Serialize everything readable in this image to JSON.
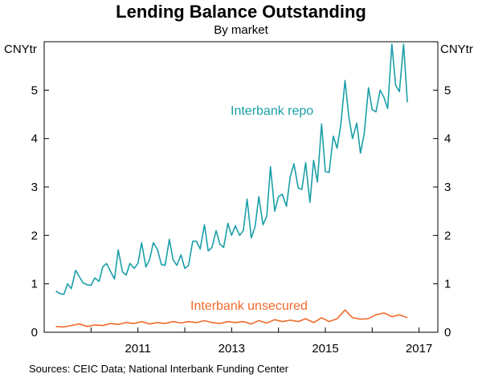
{
  "title": "Lending Balance Outstanding",
  "subtitle": "By market",
  "source": "Sources: CEIC Data; National Interbank Funding Center",
  "colors": {
    "repo": "#1a9fa8",
    "unsecured": "#f06a2b",
    "axis": "#000000"
  },
  "chart_data": {
    "type": "line",
    "x_unit": "year",
    "y_unit_left": "CNYtr",
    "y_unit_right": "CNYtr",
    "ylim": [
      0,
      6
    ],
    "xlim": [
      2009.0,
      2017.4
    ],
    "y_ticks": [
      0,
      1,
      2,
      3,
      4,
      5
    ],
    "x_ticks": [
      "2011",
      "2013",
      "2015",
      "2017"
    ],
    "x_tick_values": [
      2011,
      2013,
      2015,
      2017
    ],
    "grid": false,
    "series": [
      {
        "name": "Interbank repo",
        "values": [
          [
            2009.25,
            0.85
          ],
          [
            2009.33,
            0.8
          ],
          [
            2009.42,
            0.78
          ],
          [
            2009.5,
            1.0
          ],
          [
            2009.58,
            0.9
          ],
          [
            2009.67,
            1.28
          ],
          [
            2009.75,
            1.15
          ],
          [
            2009.83,
            1.02
          ],
          [
            2009.92,
            0.98
          ],
          [
            2010.0,
            0.97
          ],
          [
            2010.08,
            1.12
          ],
          [
            2010.17,
            1.05
          ],
          [
            2010.25,
            1.35
          ],
          [
            2010.33,
            1.42
          ],
          [
            2010.42,
            1.25
          ],
          [
            2010.5,
            1.1
          ],
          [
            2010.58,
            1.7
          ],
          [
            2010.67,
            1.25
          ],
          [
            2010.75,
            1.18
          ],
          [
            2010.83,
            1.42
          ],
          [
            2010.92,
            1.32
          ],
          [
            2011.0,
            1.42
          ],
          [
            2011.08,
            1.85
          ],
          [
            2011.17,
            1.35
          ],
          [
            2011.25,
            1.5
          ],
          [
            2011.33,
            1.85
          ],
          [
            2011.42,
            1.7
          ],
          [
            2011.5,
            1.4
          ],
          [
            2011.58,
            1.38
          ],
          [
            2011.67,
            1.92
          ],
          [
            2011.75,
            1.5
          ],
          [
            2011.83,
            1.38
          ],
          [
            2011.92,
            1.6
          ],
          [
            2012.0,
            1.32
          ],
          [
            2012.08,
            1.38
          ],
          [
            2012.17,
            1.88
          ],
          [
            2012.25,
            1.88
          ],
          [
            2012.33,
            1.72
          ],
          [
            2012.42,
            2.22
          ],
          [
            2012.5,
            1.68
          ],
          [
            2012.58,
            1.75
          ],
          [
            2012.67,
            2.1
          ],
          [
            2012.75,
            1.82
          ],
          [
            2012.83,
            1.75
          ],
          [
            2012.92,
            2.25
          ],
          [
            2013.0,
            2.0
          ],
          [
            2013.08,
            2.2
          ],
          [
            2013.17,
            2.0
          ],
          [
            2013.25,
            2.1
          ],
          [
            2013.33,
            2.75
          ],
          [
            2013.42,
            1.95
          ],
          [
            2013.5,
            2.18
          ],
          [
            2013.58,
            2.8
          ],
          [
            2013.67,
            2.22
          ],
          [
            2013.75,
            2.4
          ],
          [
            2013.83,
            3.42
          ],
          [
            2013.92,
            2.5
          ],
          [
            2014.0,
            2.8
          ],
          [
            2014.08,
            2.85
          ],
          [
            2014.17,
            2.6
          ],
          [
            2014.25,
            3.2
          ],
          [
            2014.33,
            3.48
          ],
          [
            2014.42,
            2.98
          ],
          [
            2014.5,
            2.95
          ],
          [
            2014.58,
            3.5
          ],
          [
            2014.67,
            2.68
          ],
          [
            2014.75,
            3.55
          ],
          [
            2014.83,
            3.1
          ],
          [
            2014.92,
            4.3
          ],
          [
            2015.0,
            3.32
          ],
          [
            2015.08,
            3.3
          ],
          [
            2015.17,
            4.05
          ],
          [
            2015.25,
            3.8
          ],
          [
            2015.33,
            4.28
          ],
          [
            2015.42,
            5.2
          ],
          [
            2015.5,
            4.45
          ],
          [
            2015.58,
            4.0
          ],
          [
            2015.67,
            4.32
          ],
          [
            2015.75,
            3.7
          ],
          [
            2015.83,
            4.1
          ],
          [
            2015.92,
            5.05
          ],
          [
            2016.0,
            4.6
          ],
          [
            2016.08,
            4.55
          ],
          [
            2016.17,
            5.0
          ],
          [
            2016.25,
            4.85
          ],
          [
            2016.33,
            4.62
          ],
          [
            2016.42,
            5.95
          ],
          [
            2016.5,
            5.1
          ],
          [
            2016.58,
            4.97
          ],
          [
            2016.67,
            5.95
          ],
          [
            2016.75,
            4.75
          ]
        ]
      },
      {
        "name": "Interbank unsecured",
        "values": [
          [
            2009.25,
            0.12
          ],
          [
            2009.42,
            0.11
          ],
          [
            2009.58,
            0.14
          ],
          [
            2009.75,
            0.17
          ],
          [
            2009.92,
            0.12
          ],
          [
            2010.08,
            0.15
          ],
          [
            2010.25,
            0.14
          ],
          [
            2010.42,
            0.18
          ],
          [
            2010.58,
            0.16
          ],
          [
            2010.75,
            0.2
          ],
          [
            2010.92,
            0.18
          ],
          [
            2011.08,
            0.22
          ],
          [
            2011.25,
            0.17
          ],
          [
            2011.42,
            0.2
          ],
          [
            2011.58,
            0.18
          ],
          [
            2011.75,
            0.22
          ],
          [
            2011.92,
            0.19
          ],
          [
            2012.08,
            0.22
          ],
          [
            2012.25,
            0.2
          ],
          [
            2012.42,
            0.24
          ],
          [
            2012.58,
            0.2
          ],
          [
            2012.75,
            0.18
          ],
          [
            2012.92,
            0.22
          ],
          [
            2013.08,
            0.2
          ],
          [
            2013.25,
            0.22
          ],
          [
            2013.42,
            0.17
          ],
          [
            2013.58,
            0.24
          ],
          [
            2013.75,
            0.19
          ],
          [
            2013.92,
            0.26
          ],
          [
            2014.08,
            0.22
          ],
          [
            2014.25,
            0.25
          ],
          [
            2014.42,
            0.22
          ],
          [
            2014.58,
            0.28
          ],
          [
            2014.75,
            0.2
          ],
          [
            2014.92,
            0.3
          ],
          [
            2015.08,
            0.22
          ],
          [
            2015.25,
            0.28
          ],
          [
            2015.42,
            0.46
          ],
          [
            2015.58,
            0.3
          ],
          [
            2015.75,
            0.27
          ],
          [
            2015.92,
            0.28
          ],
          [
            2016.08,
            0.36
          ],
          [
            2016.25,
            0.4
          ],
          [
            2016.42,
            0.32
          ],
          [
            2016.58,
            0.36
          ],
          [
            2016.75,
            0.3
          ]
        ]
      }
    ],
    "annotations": [
      {
        "text": "Interbank repo",
        "series": 0
      },
      {
        "text": "Interbank unsecured",
        "series": 1
      }
    ]
  }
}
